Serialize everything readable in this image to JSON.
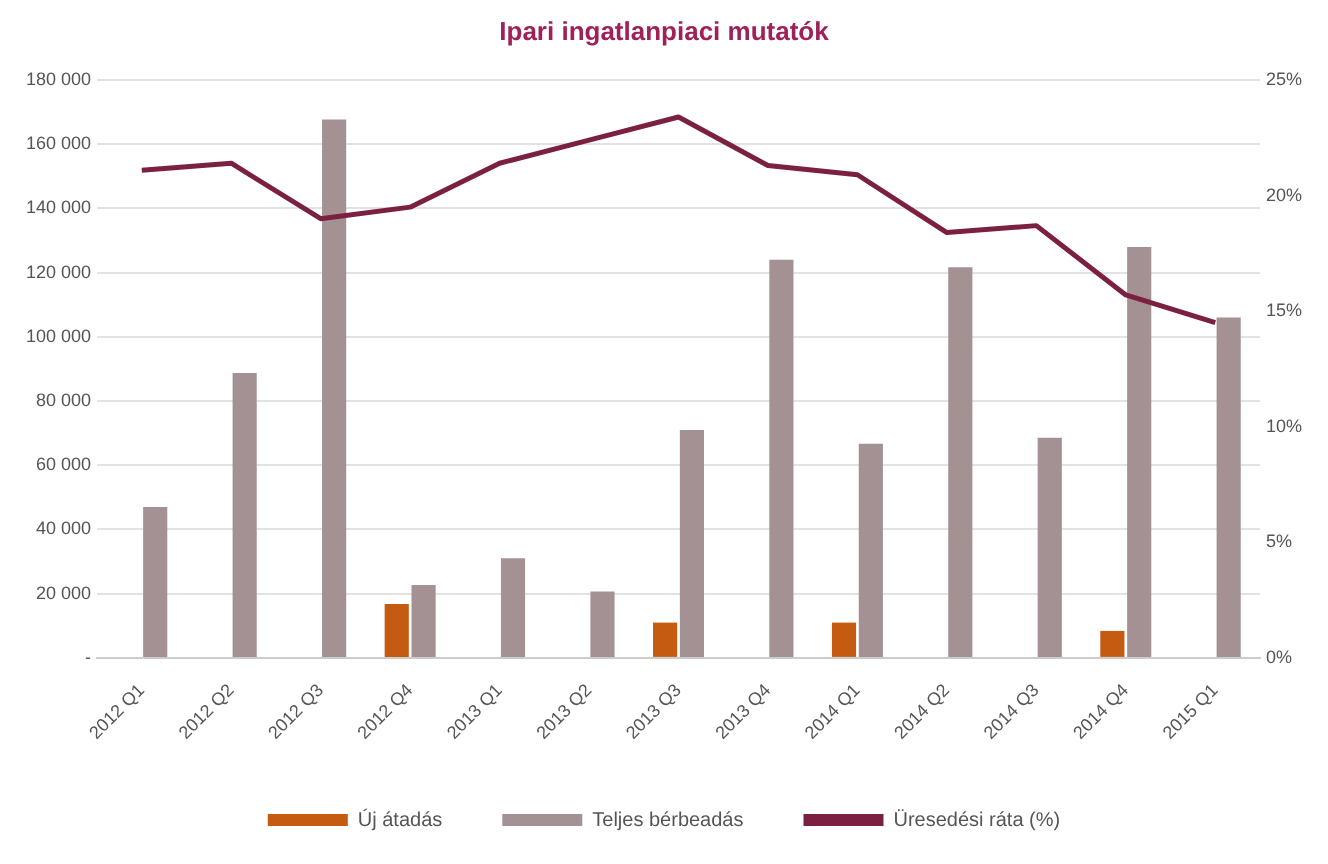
{
  "chart_data": {
    "type": "bar",
    "title": "Ipari ingatlanpiaci mutatók",
    "categories": [
      "2012 Q1",
      "2012 Q2",
      "2012 Q3",
      "2012 Q4",
      "2013 Q1",
      "2013 Q2",
      "2013 Q3",
      "2013 Q4",
      "2014 Q1",
      "2014 Q2",
      "2014 Q3",
      "2014 Q4",
      "2015 Q1"
    ],
    "series": [
      {
        "name": "Új átadás",
        "color": "#c55a11",
        "values": [
          null,
          null,
          null,
          16800,
          null,
          null,
          11000,
          null,
          11000,
          null,
          null,
          8400,
          null
        ]
      },
      {
        "name": "Teljes bérbeadás",
        "color": "#a39194",
        "values": [
          47000,
          88700,
          167700,
          22700,
          31000,
          20700,
          71000,
          124000,
          66700,
          121700,
          68600,
          128000,
          106000
        ]
      },
      {
        "name": "Üresedési ráta (%)",
        "type": "line",
        "axis": "y2",
        "color": "#7b2040",
        "values": [
          21.1,
          21.4,
          19.0,
          19.5,
          21.4,
          22.4,
          23.4,
          21.3,
          20.9,
          18.4,
          18.7,
          15.7,
          14.5
        ]
      }
    ],
    "ylim": [
      0,
      180000
    ],
    "yticks": [
      {
        "value": 0,
        "label": "-"
      },
      {
        "value": 20000,
        "label": "20 000"
      },
      {
        "value": 40000,
        "label": "40 000"
      },
      {
        "value": 60000,
        "label": "60 000"
      },
      {
        "value": 80000,
        "label": "80 000"
      },
      {
        "value": 100000,
        "label": "100 000"
      },
      {
        "value": 120000,
        "label": "120 000"
      },
      {
        "value": 140000,
        "label": "140 000"
      },
      {
        "value": 160000,
        "label": "160 000"
      },
      {
        "value": 180000,
        "label": "180 000"
      }
    ],
    "y2lim": [
      0,
      25
    ],
    "y2ticks": [
      {
        "value": 0,
        "label": "0%"
      },
      {
        "value": 5,
        "label": "5%"
      },
      {
        "value": 10,
        "label": "10%"
      },
      {
        "value": 15,
        "label": "15%"
      },
      {
        "value": 20,
        "label": "20%"
      },
      {
        "value": 25,
        "label": "25%"
      }
    ],
    "grid": "y",
    "legend": "bottom",
    "marker": "none"
  }
}
